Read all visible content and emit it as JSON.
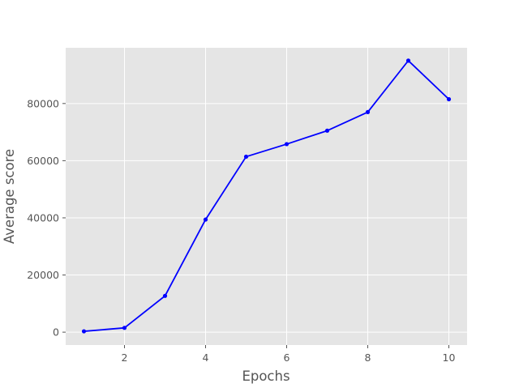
{
  "chart_data": {
    "type": "line",
    "title": "",
    "xlabel": "Epochs",
    "ylabel": "Average score",
    "x": [
      1,
      2,
      3,
      4,
      5,
      6,
      7,
      8,
      9,
      10
    ],
    "series": [
      {
        "values": [
          300,
          1500,
          12700,
          39400,
          61400,
          65800,
          70500,
          77000,
          95000,
          81500
        ],
        "color": "#0000ff",
        "marker": "circle"
      }
    ],
    "xlim": [
      0.55,
      10.45
    ],
    "ylim": [
      -4500,
      99500
    ],
    "xticks": [
      2,
      4,
      6,
      8,
      10
    ],
    "yticks": [
      0,
      20000,
      40000,
      60000,
      80000
    ],
    "grid": true,
    "style": {
      "plot_background": "#e5e5e5",
      "grid_color": "#ffffff"
    }
  }
}
